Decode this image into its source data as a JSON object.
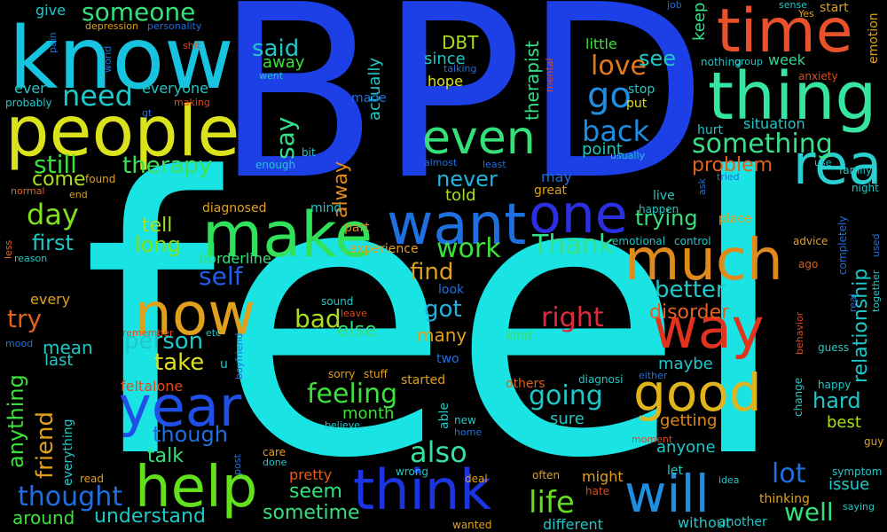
{
  "words": [
    {
      "text": "feel",
      "color": "#19e3e3"
    },
    {
      "text": "BPD",
      "color": "#1c3fe6"
    },
    {
      "text": "know",
      "color": "#16c4e0"
    },
    {
      "text": "people",
      "color": "#d9e21a"
    },
    {
      "text": "thing",
      "color": "#36e6a0"
    },
    {
      "text": "time",
      "color": "#e8512a"
    },
    {
      "text": "make",
      "color": "#30e25a"
    },
    {
      "text": "want",
      "color": "#1f6fe0"
    },
    {
      "text": "one",
      "color": "#2b2fe0"
    },
    {
      "text": "much",
      "color": "#e08a1c"
    },
    {
      "text": "really",
      "color": "#2ad0d0"
    },
    {
      "text": "way",
      "color": "#e0321c"
    },
    {
      "text": "now",
      "color": "#e0a01c"
    },
    {
      "text": "year",
      "color": "#1f4fe8"
    },
    {
      "text": "help",
      "color": "#62e01c"
    },
    {
      "text": "think",
      "color": "#1c33e0"
    },
    {
      "text": "will",
      "color": "#1f8ee0"
    },
    {
      "text": "good",
      "color": "#e0b41c"
    },
    {
      "text": "even",
      "color": "#35e07a"
    },
    {
      "text": "someone",
      "color": "#35e07a"
    },
    {
      "text": "need",
      "color": "#1fc8c8"
    },
    {
      "text": "still",
      "color": "#3ce03a"
    },
    {
      "text": "therapy",
      "color": "#3ce05a"
    },
    {
      "text": "come",
      "color": "#a8e01c"
    },
    {
      "text": "day",
      "color": "#82e01c"
    },
    {
      "text": "go",
      "color": "#1f8ee0"
    },
    {
      "text": "love",
      "color": "#e07a1c"
    },
    {
      "text": "see",
      "color": "#1fc8c8"
    },
    {
      "text": "week",
      "color": "#38d690"
    },
    {
      "text": "something",
      "color": "#38e08a"
    },
    {
      "text": "back",
      "color": "#1f8ee0"
    },
    {
      "text": "problem",
      "color": "#e0601c"
    },
    {
      "text": "said",
      "color": "#1fc8c8"
    },
    {
      "text": "away",
      "color": "#3ce03a"
    },
    {
      "text": "say",
      "color": "#35e08a"
    },
    {
      "text": "DBT",
      "color": "#a8e01c"
    },
    {
      "text": "since",
      "color": "#1fc8c8"
    },
    {
      "text": "hope",
      "color": "#e0e01c"
    },
    {
      "text": "never",
      "color": "#1fb4e0"
    },
    {
      "text": "told",
      "color": "#a8e01c"
    },
    {
      "text": "tell",
      "color": "#a8e01c"
    },
    {
      "text": "long",
      "color": "#82e01c"
    },
    {
      "text": "first",
      "color": "#1fc8c8"
    },
    {
      "text": "trying",
      "color": "#35e07a"
    },
    {
      "text": "work",
      "color": "#3ce03a"
    },
    {
      "text": "Thank",
      "color": "#35e08a"
    },
    {
      "text": "find",
      "color": "#e0a01c"
    },
    {
      "text": "self",
      "color": "#1f5fe8"
    },
    {
      "text": "better",
      "color": "#1fc8c8"
    },
    {
      "text": "disorder",
      "color": "#e0601c"
    },
    {
      "text": "relationship",
      "color": "#1fc8c8"
    },
    {
      "text": "right",
      "color": "#e02a3a"
    },
    {
      "text": "got",
      "color": "#1fb4e0"
    },
    {
      "text": "bad",
      "color": "#a8e01c"
    },
    {
      "text": "else",
      "color": "#35e07a"
    },
    {
      "text": "person",
      "color": "#1fc8c8"
    },
    {
      "text": "take",
      "color": "#e0e01c"
    },
    {
      "text": "try",
      "color": "#e0601c"
    },
    {
      "text": "mean",
      "color": "#1fc8c8"
    },
    {
      "text": "last",
      "color": "#1fc8c8"
    },
    {
      "text": "anything",
      "color": "#3ce03a"
    },
    {
      "text": "friend",
      "color": "#e0a01c"
    },
    {
      "text": "feeling",
      "color": "#3ce03a"
    },
    {
      "text": "month",
      "color": "#3ce03a"
    },
    {
      "text": "going",
      "color": "#1fc8c8"
    },
    {
      "text": "sure",
      "color": "#1fc8c8"
    },
    {
      "text": "also",
      "color": "#35e0a0"
    },
    {
      "text": "though",
      "color": "#1f6fe0"
    },
    {
      "text": "talk",
      "color": "#35e07a"
    },
    {
      "text": "thought",
      "color": "#1f6fe0"
    },
    {
      "text": "understand",
      "color": "#1fc8c8"
    },
    {
      "text": "around",
      "color": "#3ce03a"
    },
    {
      "text": "seem",
      "color": "#35e07a"
    },
    {
      "text": "sometime",
      "color": "#35e07a"
    },
    {
      "text": "life",
      "color": "#62e01c"
    },
    {
      "text": "lot",
      "color": "#1f6fe0"
    },
    {
      "text": "well",
      "color": "#35e07a"
    },
    {
      "text": "hard",
      "color": "#1fc8c8"
    },
    {
      "text": "best",
      "color": "#a8e01c"
    },
    {
      "text": "issue",
      "color": "#1fc8c8"
    },
    {
      "text": "maybe",
      "color": "#1fc8c8"
    },
    {
      "text": "getting",
      "color": "#e08a1c"
    },
    {
      "text": "anyone",
      "color": "#1fc8c8"
    },
    {
      "text": "actually",
      "color": "#1fc8c8"
    },
    {
      "text": "therapist",
      "color": "#35e08a"
    },
    {
      "text": "alway",
      "color": "#e08a1c"
    },
    {
      "text": "many",
      "color": "#e0a01c"
    },
    {
      "text": "everyone",
      "color": "#1fc8c8"
    },
    {
      "text": "give",
      "color": "#1fc8c8"
    },
    {
      "text": "ever",
      "color": "#1fc8c8"
    },
    {
      "text": "keep",
      "color": "#35e08a"
    },
    {
      "text": "emotion",
      "color": "#e0a01c"
    },
    {
      "text": "hurt",
      "color": "#1fc8c8"
    },
    {
      "text": "situation",
      "color": "#1fc8c8"
    },
    {
      "text": "point",
      "color": "#1fc8c8"
    },
    {
      "text": "borderline",
      "color": "#35e07a"
    },
    {
      "text": "experience",
      "color": "#e0a01c"
    },
    {
      "text": "part",
      "color": "#e08a1c"
    },
    {
      "text": "started",
      "color": "#e0a01c"
    },
    {
      "text": "others",
      "color": "#e0601c"
    },
    {
      "text": "might",
      "color": "#e0a01c"
    },
    {
      "text": "pretty",
      "color": "#e0601c"
    },
    {
      "text": "different",
      "color": "#1fc8c8"
    },
    {
      "text": "without",
      "color": "#1fc8c8"
    },
    {
      "text": "wanted",
      "color": "#e0a01c"
    },
    {
      "text": "feltalone",
      "color": "#e04a1c"
    },
    {
      "text": "kind",
      "color": "#3ce05a"
    },
    {
      "text": "diagnosed",
      "color": "#e0a01c"
    },
    {
      "text": "mind",
      "color": "#1fc8c8"
    },
    {
      "text": "may",
      "color": "#1f6fe0"
    },
    {
      "text": "great",
      "color": "#e0a01c"
    },
    {
      "text": "little",
      "color": "#3ce03a"
    },
    {
      "text": "stop",
      "color": "#1fc8c8"
    },
    {
      "text": "put",
      "color": "#e0e01c"
    },
    {
      "text": "made",
      "color": "#1f6fe0"
    },
    {
      "text": "probably",
      "color": "#1fc8c8"
    },
    {
      "text": "depression",
      "color": "#e0a01c"
    },
    {
      "text": "personality",
      "color": "#1f6fe0"
    },
    {
      "text": "found",
      "color": "#e0a01c"
    },
    {
      "text": "end",
      "color": "#e0a01c"
    },
    {
      "text": "normal",
      "color": "#e0601c"
    },
    {
      "text": "less",
      "color": "#e0601c"
    },
    {
      "text": "reason",
      "color": "#1fc8c8"
    },
    {
      "text": "every",
      "color": "#e0a01c"
    },
    {
      "text": "everything",
      "color": "#1fc8c8"
    },
    {
      "text": "read",
      "color": "#e0a01c"
    },
    {
      "text": "care",
      "color": "#e0a01c"
    },
    {
      "text": "done",
      "color": "#1fc8c8"
    },
    {
      "text": "post",
      "color": "#1f6fe0"
    },
    {
      "text": "deal",
      "color": "#e0a01c"
    },
    {
      "text": "often",
      "color": "#e0a01c"
    },
    {
      "text": "wrong",
      "color": "#1fc8c8"
    },
    {
      "text": "hate",
      "color": "#e04a1c"
    },
    {
      "text": "let",
      "color": "#1fc8c8"
    },
    {
      "text": "live",
      "color": "#1fc8c8"
    },
    {
      "text": "happen",
      "color": "#1fc8c8"
    },
    {
      "text": "place",
      "color": "#e0a01c"
    },
    {
      "text": "emotional",
      "color": "#1fc8c8"
    },
    {
      "text": "control",
      "color": "#1fc8c8"
    },
    {
      "text": "advice",
      "color": "#e0a01c"
    },
    {
      "text": "ago",
      "color": "#e0601c"
    },
    {
      "text": "guess",
      "color": "#1fc8c8"
    },
    {
      "text": "happy",
      "color": "#1fc8c8"
    },
    {
      "text": "change",
      "color": "#1fc8c8"
    },
    {
      "text": "behavior",
      "color": "#e04a1c"
    },
    {
      "text": "moment",
      "color": "#e04a1c"
    },
    {
      "text": "symptom",
      "color": "#1fc8c8"
    },
    {
      "text": "thinking",
      "color": "#e0a01c"
    },
    {
      "text": "saying",
      "color": "#1fc8c8"
    },
    {
      "text": "another",
      "color": "#1fc8c8"
    },
    {
      "text": "guy",
      "color": "#e0a01c"
    },
    {
      "text": "family",
      "color": "#1fc8c8"
    },
    {
      "text": "night",
      "color": "#1fc8c8"
    },
    {
      "text": "use",
      "color": "#1fc8c8"
    },
    {
      "text": "anxiety",
      "color": "#e04a1c"
    },
    {
      "text": "group",
      "color": "#1fc8c8"
    },
    {
      "text": "Yes",
      "color": "#e0a01c"
    },
    {
      "text": "sense",
      "color": "#1fc8c8"
    },
    {
      "text": "start",
      "color": "#e0a01c"
    },
    {
      "text": "job",
      "color": "#1f6fe0"
    },
    {
      "text": "nothing",
      "color": "#1fc8c8"
    },
    {
      "text": "talking",
      "color": "#1f6fe0"
    },
    {
      "text": "went",
      "color": "#1fc8c8"
    },
    {
      "text": "shit",
      "color": "#e04a1c"
    },
    {
      "text": "pain",
      "color": "#1f6fe0"
    },
    {
      "text": "world",
      "color": "#1f6fe0"
    },
    {
      "text": "gt",
      "color": "#1f6fe0"
    },
    {
      "text": "making",
      "color": "#e04a1c"
    },
    {
      "text": "enough",
      "color": "#1fc8c8"
    },
    {
      "text": "bit",
      "color": "#1fc8c8"
    },
    {
      "text": "almost",
      "color": "#1f6fe0"
    },
    {
      "text": "least",
      "color": "#1f6fe0"
    },
    {
      "text": "usually",
      "color": "#1fc8c8"
    },
    {
      "text": "tried",
      "color": "#1f6fe0"
    },
    {
      "text": "ask",
      "color": "#1f6fe0"
    },
    {
      "text": "mental",
      "color": "#e04a1c"
    },
    {
      "text": "sound",
      "color": "#1fc8c8"
    },
    {
      "text": "leave",
      "color": "#e04a1c"
    },
    {
      "text": "look",
      "color": "#1f6fe0"
    },
    {
      "text": "two",
      "color": "#1f6fe0"
    },
    {
      "text": "remember",
      "color": "#e04a1c"
    },
    {
      "text": "etc",
      "color": "#1fc8c8"
    },
    {
      "text": "boyfriend",
      "color": "#1f6fe0"
    },
    {
      "text": "u",
      "color": "#1fc8c8"
    },
    {
      "text": "sorry",
      "color": "#e0a01c"
    },
    {
      "text": "stuff",
      "color": "#e0a01c"
    },
    {
      "text": "diagnosi",
      "color": "#1fc8c8"
    },
    {
      "text": "either",
      "color": "#1f6fe0"
    },
    {
      "text": "able",
      "color": "#1fc8c8"
    },
    {
      "text": "new",
      "color": "#1fc8c8"
    },
    {
      "text": "home",
      "color": "#1f6fe0"
    },
    {
      "text": "believe",
      "color": "#1fc8c8"
    },
    {
      "text": "idea",
      "color": "#1fc8c8"
    },
    {
      "text": "completely",
      "color": "#1f6fe0"
    },
    {
      "text": "real",
      "color": "#1f6fe0"
    },
    {
      "text": "together",
      "color": "#1fc8c8"
    },
    {
      "text": "used",
      "color": "#1f6fe0"
    },
    {
      "text": "mood",
      "color": "#1f6fe0"
    }
  ]
}
